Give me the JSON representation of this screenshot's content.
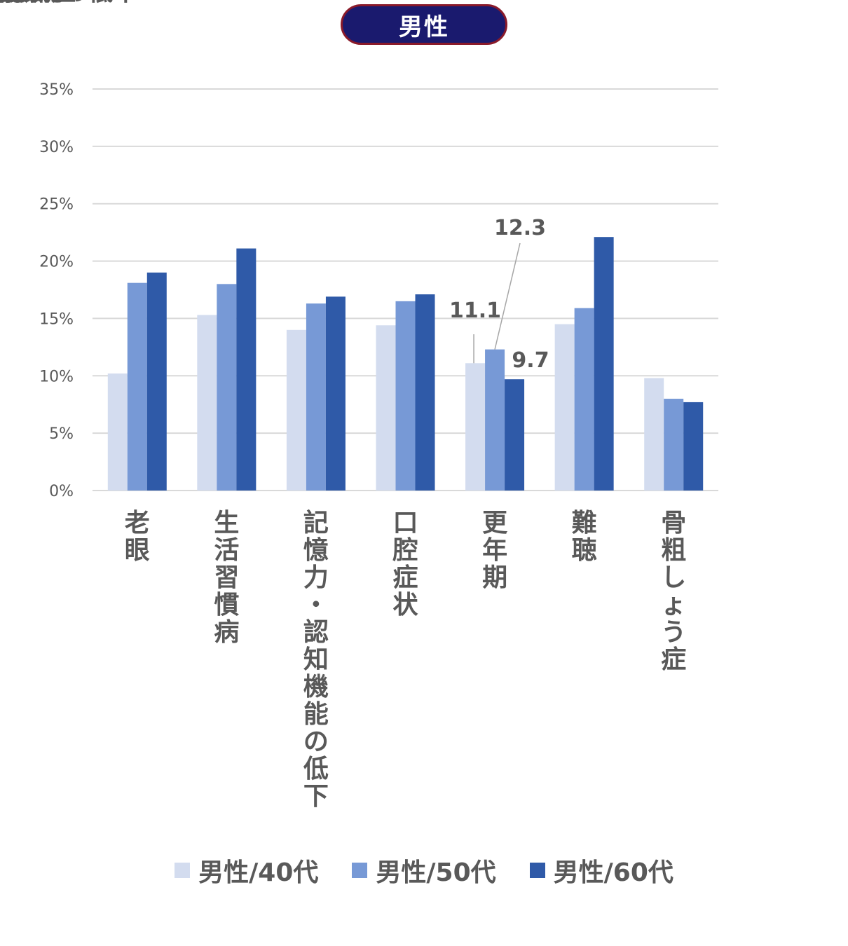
{
  "header": {
    "title": "男性"
  },
  "chart_data": {
    "type": "bar",
    "ylim": [
      0,
      35
    ],
    "yticks": [
      0,
      5,
      10,
      15,
      20,
      25,
      30,
      35
    ],
    "ytick_labels": [
      "0%",
      "5%",
      "10%",
      "15%",
      "20%",
      "25%",
      "30%",
      "35%"
    ],
    "grid": true,
    "legend": "bottom",
    "categories": [
      "老眼",
      "生活習慣病",
      "記憶力・認知機能の低下",
      "口腔症状",
      "更年期",
      "難聴",
      "骨粗しょう症"
    ],
    "series": [
      {
        "name": "男性/40代",
        "color": "#d3dcef",
        "values": [
          10.2,
          15.3,
          14.0,
          14.4,
          11.1,
          14.5,
          9.8
        ]
      },
      {
        "name": "男性/50代",
        "color": "#7799d6",
        "values": [
          18.1,
          18.0,
          16.3,
          16.5,
          12.3,
          15.9,
          8.0
        ]
      },
      {
        "name": "男性/60代",
        "color": "#2f5aa8",
        "values": [
          19.0,
          21.1,
          16.9,
          17.1,
          9.7,
          22.1,
          7.7
        ]
      }
    ],
    "data_labels": [
      {
        "category_index": 4,
        "series_index": 0,
        "text": "11.1"
      },
      {
        "category_index": 4,
        "series_index": 1,
        "text": "12.3"
      },
      {
        "category_index": 4,
        "series_index": 2,
        "text": "9.7"
      }
    ]
  }
}
